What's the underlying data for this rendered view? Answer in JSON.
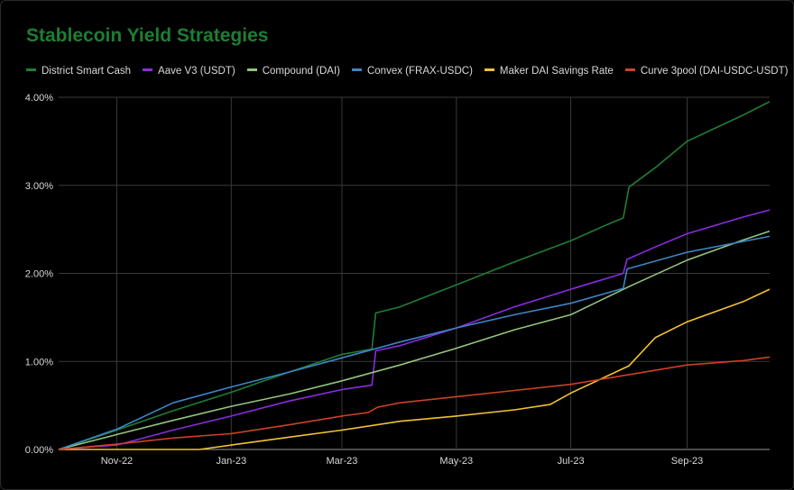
{
  "chart_data": {
    "type": "line",
    "title": "Stablecoin Yield Strategies",
    "title_color": "#1e7e34",
    "background": "#000000",
    "grid": true,
    "grid_color": "#3a3a3a",
    "legend_position": "top",
    "xlabel": "",
    "ylabel": "",
    "x_range": [
      "2022-10-01",
      "2023-10-15"
    ],
    "ylim": [
      0,
      4
    ],
    "y_ticks": [
      {
        "value": 0,
        "label": "0.00%"
      },
      {
        "value": 1,
        "label": "1.00%"
      },
      {
        "value": 2,
        "label": "2.00%"
      },
      {
        "value": 3,
        "label": "3.00%"
      },
      {
        "value": 4,
        "label": "4.00%"
      }
    ],
    "x_ticks": [
      {
        "date": "2022-11-01",
        "label": "Nov-22"
      },
      {
        "date": "2023-01-01",
        "label": "Jan-23"
      },
      {
        "date": "2023-03-01",
        "label": "Mar-23"
      },
      {
        "date": "2023-05-01",
        "label": "May-23"
      },
      {
        "date": "2023-07-01",
        "label": "Jul-23"
      },
      {
        "date": "2023-09-01",
        "label": "Sep-23"
      }
    ],
    "series": [
      {
        "name": "District Smart Cash",
        "color": "#1e7e34",
        "points": [
          [
            "2022-10-01",
            0
          ],
          [
            "2022-11-01",
            0.22
          ],
          [
            "2022-12-01",
            0.44
          ],
          [
            "2023-01-01",
            0.65
          ],
          [
            "2023-02-01",
            0.88
          ],
          [
            "2023-03-01",
            1.08
          ],
          [
            "2023-03-17",
            1.14
          ],
          [
            "2023-03-19",
            1.55
          ],
          [
            "2023-04-01",
            1.62
          ],
          [
            "2023-05-01",
            1.87
          ],
          [
            "2023-06-01",
            2.13
          ],
          [
            "2023-07-01",
            2.37
          ],
          [
            "2023-07-20",
            2.55
          ],
          [
            "2023-07-29",
            2.63
          ],
          [
            "2023-08-01",
            2.98
          ],
          [
            "2023-08-15",
            3.2
          ],
          [
            "2023-09-01",
            3.5
          ],
          [
            "2023-10-01",
            3.8
          ],
          [
            "2023-10-15",
            3.95
          ]
        ]
      },
      {
        "name": "Aave V3 (USDT)",
        "color": "#8a2be2",
        "points": [
          [
            "2022-10-01",
            0
          ],
          [
            "2022-11-01",
            0.05
          ],
          [
            "2022-12-01",
            0.22
          ],
          [
            "2023-01-01",
            0.38
          ],
          [
            "2023-02-01",
            0.55
          ],
          [
            "2023-03-01",
            0.68
          ],
          [
            "2023-03-17",
            0.73
          ],
          [
            "2023-03-19",
            1.12
          ],
          [
            "2023-04-01",
            1.18
          ],
          [
            "2023-05-01",
            1.38
          ],
          [
            "2023-06-01",
            1.62
          ],
          [
            "2023-07-01",
            1.82
          ],
          [
            "2023-07-29",
            2.0
          ],
          [
            "2023-07-31",
            2.16
          ],
          [
            "2023-08-15",
            2.3
          ],
          [
            "2023-09-01",
            2.45
          ],
          [
            "2023-10-01",
            2.64
          ],
          [
            "2023-10-15",
            2.72
          ]
        ]
      },
      {
        "name": "Compound (DAI)",
        "color": "#93c47d",
        "points": [
          [
            "2022-10-01",
            0
          ],
          [
            "2022-11-01",
            0.17
          ],
          [
            "2022-12-01",
            0.33
          ],
          [
            "2023-01-01",
            0.49
          ],
          [
            "2023-02-01",
            0.63
          ],
          [
            "2023-03-01",
            0.78
          ],
          [
            "2023-04-01",
            0.96
          ],
          [
            "2023-05-01",
            1.15
          ],
          [
            "2023-06-01",
            1.36
          ],
          [
            "2023-07-01",
            1.53
          ],
          [
            "2023-08-01",
            1.85
          ],
          [
            "2023-09-01",
            2.15
          ],
          [
            "2023-10-01",
            2.38
          ],
          [
            "2023-10-15",
            2.48
          ]
        ]
      },
      {
        "name": "Convex (FRAX-USDC)",
        "color": "#3d85c6",
        "points": [
          [
            "2022-10-01",
            0
          ],
          [
            "2022-11-01",
            0.23
          ],
          [
            "2022-12-01",
            0.53
          ],
          [
            "2023-01-01",
            0.71
          ],
          [
            "2023-02-01",
            0.88
          ],
          [
            "2023-03-01",
            1.04
          ],
          [
            "2023-04-01",
            1.22
          ],
          [
            "2023-05-01",
            1.38
          ],
          [
            "2023-06-01",
            1.53
          ],
          [
            "2023-07-01",
            1.66
          ],
          [
            "2023-07-29",
            1.83
          ],
          [
            "2023-07-31",
            2.05
          ],
          [
            "2023-09-01",
            2.24
          ],
          [
            "2023-10-15",
            2.42
          ]
        ]
      },
      {
        "name": "Maker DAI Savings Rate",
        "color": "#f1c232",
        "points": [
          [
            "2022-10-01",
            0
          ],
          [
            "2022-12-15",
            0
          ],
          [
            "2023-01-01",
            0.05
          ],
          [
            "2023-02-01",
            0.14
          ],
          [
            "2023-03-01",
            0.22
          ],
          [
            "2023-04-01",
            0.32
          ],
          [
            "2023-05-01",
            0.38
          ],
          [
            "2023-06-01",
            0.45
          ],
          [
            "2023-06-20",
            0.51
          ],
          [
            "2023-07-01",
            0.64
          ],
          [
            "2023-08-01",
            0.95
          ],
          [
            "2023-08-15",
            1.27
          ],
          [
            "2023-09-01",
            1.45
          ],
          [
            "2023-10-01",
            1.68
          ],
          [
            "2023-10-15",
            1.82
          ]
        ]
      },
      {
        "name": "Curve 3pool (DAI-USDC-USDT)",
        "color": "#cc4125",
        "points": [
          [
            "2022-10-01",
            0
          ],
          [
            "2022-11-01",
            0.06
          ],
          [
            "2022-12-01",
            0.13
          ],
          [
            "2023-01-01",
            0.18
          ],
          [
            "2023-02-01",
            0.28
          ],
          [
            "2023-03-01",
            0.38
          ],
          [
            "2023-03-15",
            0.42
          ],
          [
            "2023-03-20",
            0.48
          ],
          [
            "2023-04-01",
            0.53
          ],
          [
            "2023-05-01",
            0.6
          ],
          [
            "2023-06-01",
            0.67
          ],
          [
            "2023-07-01",
            0.74
          ],
          [
            "2023-08-01",
            0.85
          ],
          [
            "2023-09-01",
            0.96
          ],
          [
            "2023-10-01",
            1.01
          ],
          [
            "2023-10-15",
            1.05
          ]
        ]
      }
    ]
  }
}
